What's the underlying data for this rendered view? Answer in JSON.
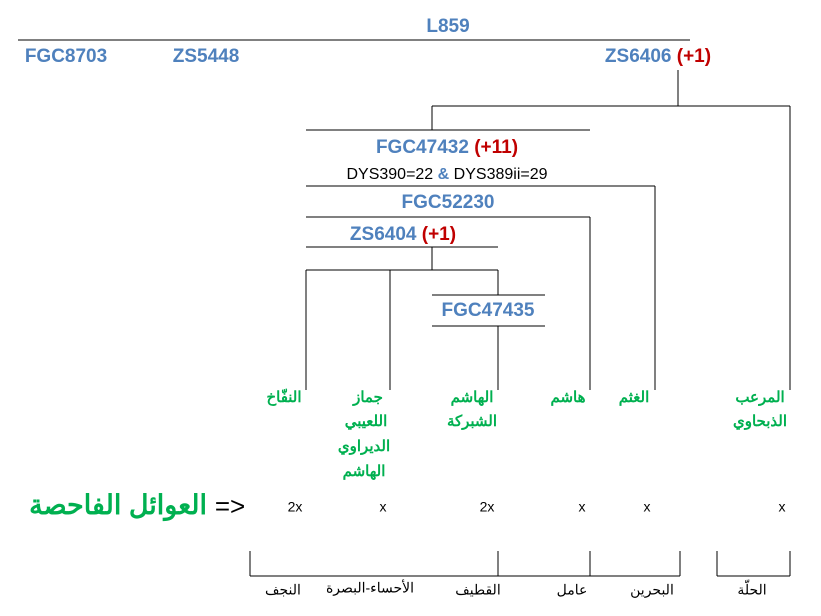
{
  "root": "L859",
  "branches": [
    {
      "label": "FGC8703"
    },
    {
      "label": "ZS5448"
    },
    {
      "label": "ZS6406",
      "mutations": "(+1)"
    },
    {
      "label": "FGC47432",
      "mutations": "(+11)"
    },
    {
      "label": "FGC52230"
    },
    {
      "label": "ZS6404",
      "mutations": "(+1)"
    },
    {
      "label": "FGC47435"
    }
  ],
  "str_note": {
    "first": "DYS390=22",
    "joiner": "&",
    "second": "DYS389ii=29"
  },
  "families": [
    {
      "lines": [
        "النفّاخ"
      ],
      "count": "2x"
    },
    {
      "lines": [
        "جماز",
        "اللعيبي",
        "الديراوي",
        "الهاشم"
      ],
      "count": "x"
    },
    {
      "lines": [
        "الهاشم",
        "الشبركة"
      ],
      "count": "2x"
    },
    {
      "lines": [
        "هاشم"
      ],
      "count": "x"
    },
    {
      "lines": [
        "الغثم"
      ],
      "count": "x"
    },
    {
      "lines": [
        "المرعب",
        "الذبحاوي"
      ],
      "count": "x"
    }
  ],
  "tested_families_label": "العوائل الفاحصة",
  "arrow": "=>",
  "regions": [
    "النجف",
    "الأحساء-البصرة",
    "القطيف",
    "عامل",
    "البحرين",
    "الحلّة"
  ]
}
